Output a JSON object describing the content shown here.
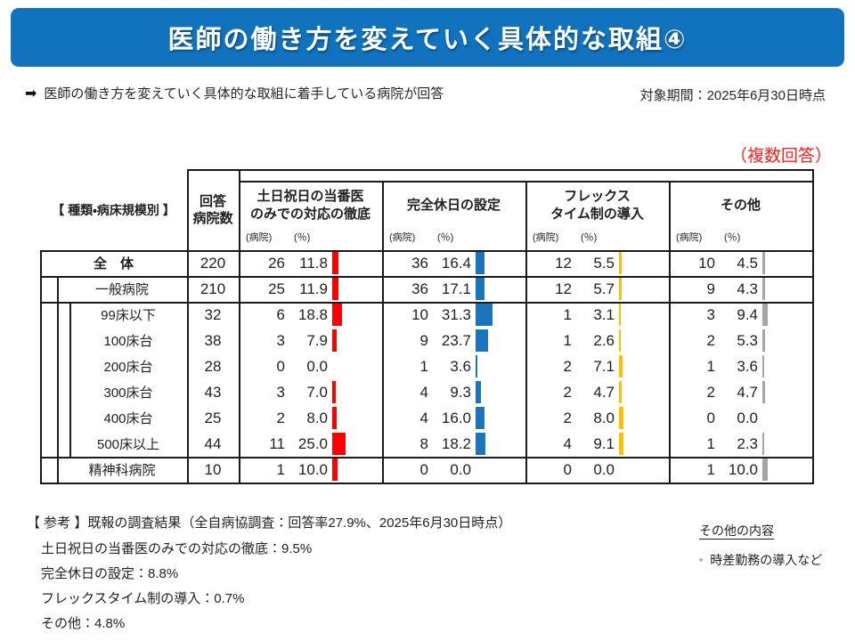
{
  "banner": {
    "title": "医師の働き方を変えていく具体的な取組④",
    "bg_color": "#1172BD"
  },
  "intro": {
    "arrow": "➡",
    "text": "医師の働き方を変えていく具体的な取組に着手している病院が回答",
    "period": "対象期間：2025年6月30日時点"
  },
  "table": {
    "note": "（複数回答）",
    "note_color": "#FF2020",
    "row_header_label": "【 種類・病床規模別 】",
    "count_header_line1": "回答",
    "count_header_line2": "病院数",
    "unit_hospital": "(病院)",
    "unit_pct": "(％)",
    "groups": [
      {
        "title_lines": [
          "土日祝日の当番医",
          "のみでの対応の徹底"
        ],
        "color": "#FF0000"
      },
      {
        "title_lines": [
          "完全休日の設定"
        ],
        "color": "#1B75BC"
      },
      {
        "title_lines": [
          "フレックス",
          "タイム制の導入"
        ],
        "color": "#FFC000"
      },
      {
        "title_lines": [
          "その他"
        ],
        "color": "#A6A6A6"
      }
    ],
    "rows": [
      {
        "label": "全　体",
        "indent": 0,
        "bold": true,
        "n": "220",
        "cells": [
          [
            "26",
            "11.8"
          ],
          [
            "36",
            "16.4"
          ],
          [
            "12",
            "5.5"
          ],
          [
            "10",
            "4.5"
          ]
        ]
      },
      {
        "label": "一般病院",
        "indent": 1,
        "bold": false,
        "n": "210",
        "cells": [
          [
            "25",
            "11.9"
          ],
          [
            "36",
            "17.1"
          ],
          [
            "12",
            "5.7"
          ],
          [
            "9",
            "4.3"
          ]
        ]
      },
      {
        "label": "99床以下",
        "indent": 2,
        "bold": false,
        "n": "32",
        "cells": [
          [
            "6",
            "18.8"
          ],
          [
            "10",
            "31.3"
          ],
          [
            "1",
            "3.1"
          ],
          [
            "3",
            "9.4"
          ]
        ]
      },
      {
        "label": "100床台",
        "indent": 2,
        "bold": false,
        "n": "38",
        "cells": [
          [
            "3",
            "7.9"
          ],
          [
            "9",
            "23.7"
          ],
          [
            "1",
            "2.6"
          ],
          [
            "2",
            "5.3"
          ]
        ]
      },
      {
        "label": "200床台",
        "indent": 2,
        "bold": false,
        "n": "28",
        "cells": [
          [
            "0",
            "0.0"
          ],
          [
            "1",
            "3.6"
          ],
          [
            "2",
            "7.1"
          ],
          [
            "1",
            "3.6"
          ]
        ]
      },
      {
        "label": "300床台",
        "indent": 2,
        "bold": false,
        "n": "43",
        "cells": [
          [
            "3",
            "7.0"
          ],
          [
            "4",
            "9.3"
          ],
          [
            "2",
            "4.7"
          ],
          [
            "2",
            "4.7"
          ]
        ]
      },
      {
        "label": "400床台",
        "indent": 2,
        "bold": false,
        "n": "25",
        "cells": [
          [
            "2",
            "8.0"
          ],
          [
            "4",
            "16.0"
          ],
          [
            "2",
            "8.0"
          ],
          [
            "0",
            "0.0"
          ]
        ]
      },
      {
        "label": "500床以上",
        "indent": 2,
        "bold": false,
        "n": "44",
        "cells": [
          [
            "11",
            "25.0"
          ],
          [
            "8",
            "18.2"
          ],
          [
            "4",
            "9.1"
          ],
          [
            "1",
            "2.3"
          ]
        ]
      },
      {
        "label": "精神科病院",
        "indent": 1,
        "bold": false,
        "n": "10",
        "cells": [
          [
            "1",
            "10.0"
          ],
          [
            "0",
            "0.0"
          ],
          [
            "0",
            "0.0"
          ],
          [
            "1",
            "10.0"
          ]
        ]
      }
    ]
  },
  "reference": {
    "title": "【 参考 】既報の調査結果（全自病協調査：回答率27.9%、2025年6月30日時点）",
    "items": [
      "土日祝日の当番医のみでの対応の徹底：9.5%",
      "完全休日の設定：8.8%",
      "フレックスタイム制の導入：0.7%",
      "その他：4.8%"
    ]
  },
  "other": {
    "title": "その他の内容",
    "bullet": "•",
    "items": [
      "時差勤務の導入など"
    ]
  }
}
